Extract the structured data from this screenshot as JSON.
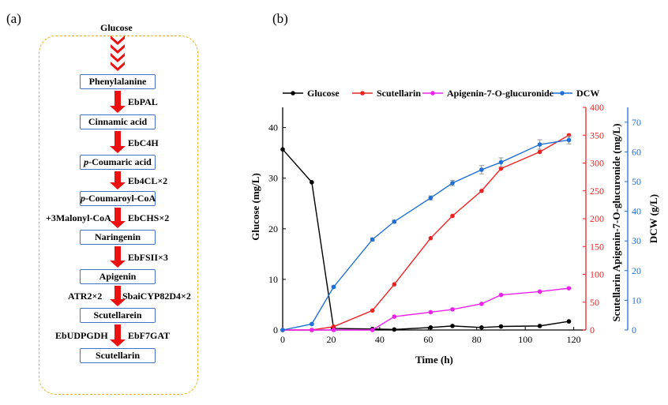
{
  "panel_a": {
    "label": "(a)",
    "start": "Glucose",
    "nodes": [
      "Phenylalanine",
      "Cinnamic acid",
      "p-Coumaric acid",
      "p-Coumaroyl-CoA",
      "Naringenin",
      "Apigenin",
      "Scutellarein",
      "Scutellarin"
    ],
    "enzymes": [
      "EbPAL",
      "EbC4H",
      "Eb4CL×2",
      "EbCHS×2",
      "EbFSII×3",
      "SbaiCYP82D4×2",
      "EbF7GAT"
    ],
    "cofactors": {
      "malonyl": "+3Malonyl-CoA",
      "atr": "ATR2×2",
      "udpgdh": "EbUDPGDH"
    }
  },
  "colors": {
    "arrow": "#ee1111",
    "box_border": "#4472c4",
    "border_dashed": "#f2b21c",
    "glucose": "#000000",
    "scutellarin": "#ee2222",
    "apigenin_glucuronide": "#ee22ee",
    "dcw": "#1e70d8"
  },
  "panel_b": {
    "label": "(b)",
    "legend": [
      "Glucose",
      "Scutellarin",
      "Apigenin-7-O-glucuronide",
      "DCW"
    ]
  },
  "chart_data": {
    "type": "line",
    "xlabel": "Time (h)",
    "ylabel_left": "Glucose  (mg/L)",
    "ylabel_right_a": "Scutellarin  Apigenin-7-O-glucuronide  (mg/L)",
    "ylabel_right_b": "DCW  (g/L)",
    "xlim": [
      0,
      125
    ],
    "xticks": [
      0,
      20,
      40,
      60,
      80,
      100,
      120
    ],
    "ylim_left": [
      0,
      44
    ],
    "yticks_left": [
      0,
      10,
      20,
      30,
      40
    ],
    "ylim_right_a": [
      0,
      400
    ],
    "yticks_right_a": [
      0,
      50,
      100,
      150,
      200,
      250,
      300,
      350,
      400
    ],
    "ylim_right_b": [
      0,
      75
    ],
    "yticks_right_b": [
      0,
      10,
      20,
      30,
      40,
      50,
      60,
      70
    ],
    "grid": false,
    "legend_position": "top",
    "series": [
      {
        "name": "Glucose",
        "axis": "left",
        "color": "#000000",
        "x": [
          0,
          12,
          21,
          37,
          46,
          61,
          70,
          82,
          90,
          106,
          118
        ],
        "y": [
          35.7,
          29.2,
          0.3,
          0.2,
          0.1,
          0.5,
          0.8,
          0.5,
          0.7,
          0.8,
          1.7
        ],
        "err": [
          0,
          0,
          0,
          0,
          0,
          0,
          0,
          0,
          0,
          0,
          0
        ]
      },
      {
        "name": "Scutellarin",
        "axis": "right_a",
        "color": "#ee2222",
        "x": [
          0,
          12,
          21,
          37,
          46,
          61,
          70,
          82,
          90,
          106,
          118
        ],
        "y": [
          0,
          0,
          6,
          35,
          82,
          165,
          205,
          250,
          290,
          320,
          350
        ],
        "err": [
          0,
          0,
          0,
          0,
          0,
          0,
          0,
          0,
          0,
          0,
          0
        ]
      },
      {
        "name": "Apigenin-7-O-glucuronide",
        "axis": "right_a",
        "color": "#ee22ee",
        "x": [
          0,
          12,
          21,
          37,
          46,
          61,
          70,
          82,
          90,
          106,
          118
        ],
        "y": [
          0,
          0,
          0,
          0,
          24,
          32,
          37,
          47,
          63,
          69,
          75
        ],
        "err": [
          0,
          0,
          0,
          0,
          0,
          0,
          0,
          0,
          0,
          0,
          0
        ]
      },
      {
        "name": "DCW",
        "axis": "right_b",
        "color": "#1e70d8",
        "x": [
          0,
          12,
          21,
          37,
          46,
          61,
          70,
          82,
          90,
          106,
          118
        ],
        "y": [
          0,
          2,
          14.5,
          30.5,
          36.5,
          44.5,
          49.5,
          54,
          56.5,
          62.5,
          64
        ],
        "err": [
          0,
          0.3,
          0.4,
          0.5,
          0.5,
          0.7,
          0.9,
          1.4,
          1.5,
          1.6,
          1.3
        ]
      }
    ]
  }
}
